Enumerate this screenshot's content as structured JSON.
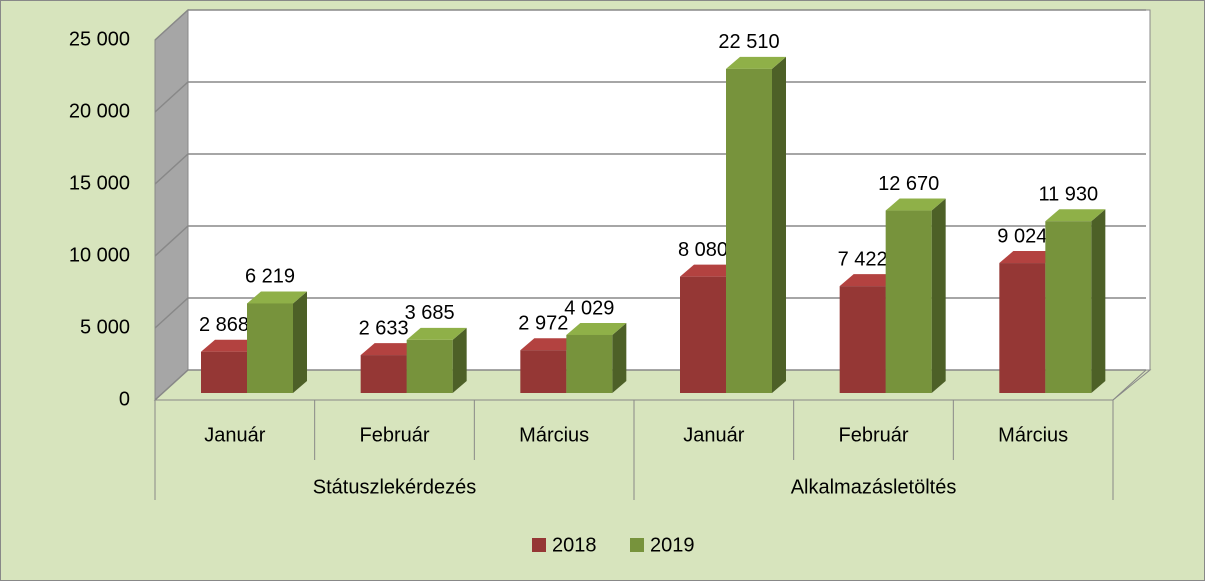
{
  "chart_data": {
    "type": "bar3d",
    "categories": [
      "Január",
      "Február",
      "Március",
      "Január",
      "Február",
      "Március"
    ],
    "category_groups": [
      "Státuszlekérdezés",
      "Alkalmazásletöltés"
    ],
    "series": [
      {
        "name": "2018",
        "color": "#953735",
        "values": [
          2868,
          2633,
          2972,
          8080,
          7422,
          9024
        ],
        "value_labels": [
          "2 868",
          "2 633",
          "2 972",
          "8 080",
          "7 422",
          "9 024"
        ]
      },
      {
        "name": "2019",
        "color": "#77933c",
        "values": [
          6219,
          3685,
          4029,
          22510,
          12670,
          11930
        ],
        "value_labels": [
          "6 219",
          "3 685",
          "4 029",
          "22 510",
          "12 670",
          "11 930"
        ]
      }
    ],
    "ylim": [
      0,
      25000
    ],
    "yticks": [
      0,
      {
        "value": 5000,
        "label": "5 000"
      },
      {
        "value": 10000,
        "label": "10 000"
      },
      {
        "value": 15000,
        "label": "15 000"
      },
      {
        "value": 20000,
        "label": "20 000"
      },
      {
        "value": 25000,
        "label": "25 000"
      }
    ],
    "grid": true,
    "legend": "bottom"
  }
}
